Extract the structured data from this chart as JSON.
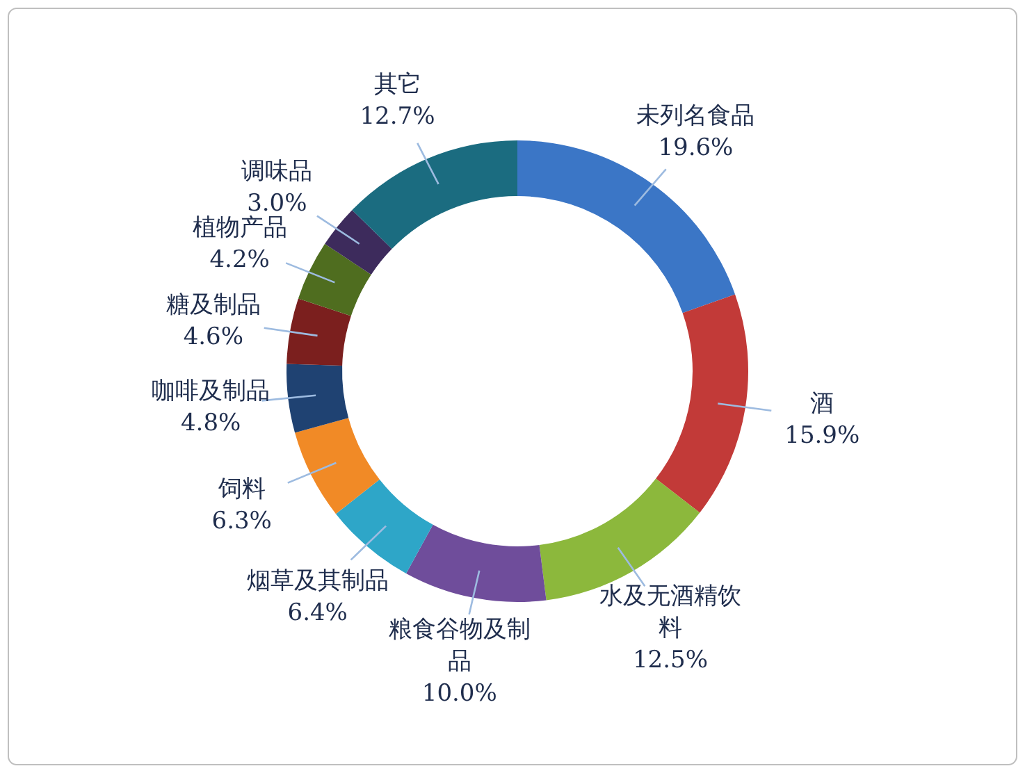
{
  "chart_data": {
    "type": "donut",
    "categories": [
      "未列名食品",
      "酒",
      "水及无酒精饮料",
      "粮食谷物及制品",
      "烟草及其制品",
      "饲料",
      "咖啡及制品",
      "糖及制品",
      "植物产品",
      "调味品",
      "其它"
    ],
    "values": [
      19.6,
      15.9,
      12.5,
      10.0,
      6.4,
      6.3,
      4.8,
      4.6,
      4.2,
      3.0,
      12.7
    ],
    "colors": [
      "#3b76c6",
      "#c23a38",
      "#8cb83c",
      "#6f4d9b",
      "#2ea6c8",
      "#f18a26",
      "#1f4272",
      "#7b1f1e",
      "#4f6d1f",
      "#3d2b5c",
      "#1b6c80"
    ],
    "value_labels": [
      "19.6%",
      "15.9%",
      "12.5%",
      "10.0%",
      "6.4%",
      "6.3%",
      "4.8%",
      "4.6%",
      "4.2%",
      "3.0%",
      "12.7%"
    ],
    "legend": false
  }
}
